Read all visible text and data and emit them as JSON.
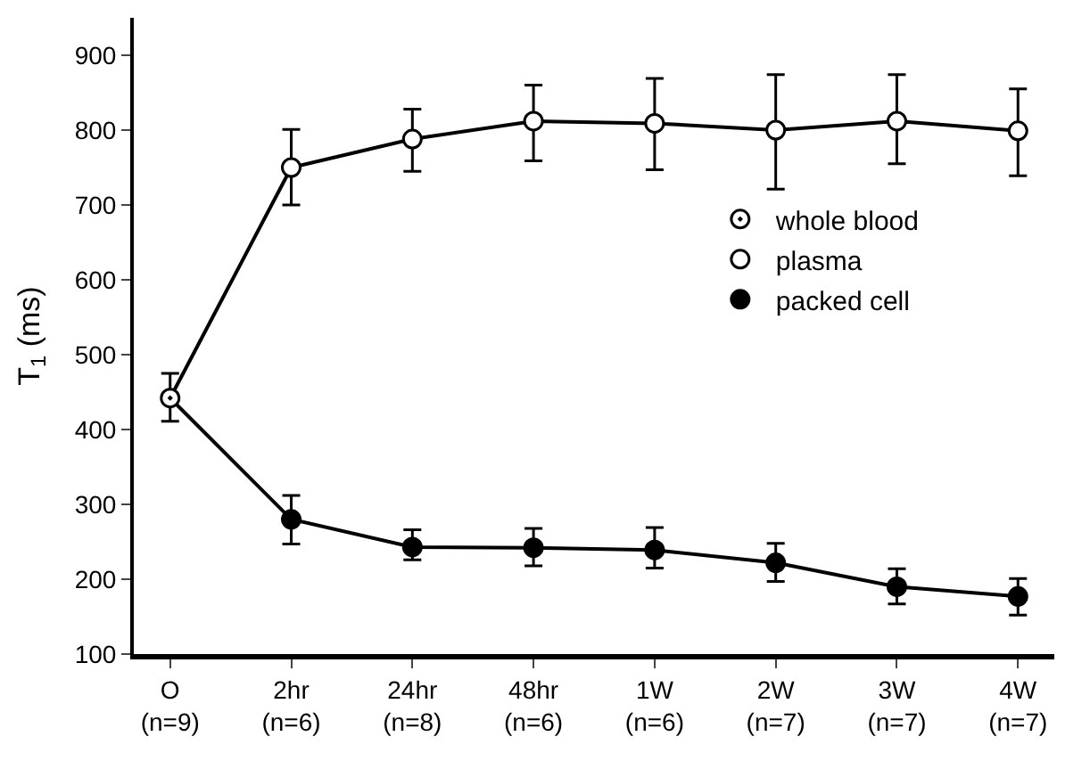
{
  "chart_data": {
    "type": "line",
    "ylabel": "T$_{1}$ (ms)",
    "categories": [
      "O\n(n=9)",
      "2hr\n(n=6)",
      "24hr\n(n=8)",
      "48hr\n(n=6)",
      "1W\n(n=6)",
      "2W\n(n=7)",
      "3W\n(n=7)",
      "4W\n(n=7)"
    ],
    "series": [
      {
        "name": "whole blood",
        "type": "scatter",
        "color": "#000000",
        "marker": "circle-dot",
        "values": [
          442,
          null,
          null,
          null,
          null,
          null,
          null,
          null
        ],
        "errors": [
          [
            411,
            475
          ],
          null,
          null,
          null,
          null,
          null,
          null,
          null
        ]
      },
      {
        "name": "plasma",
        "color": "#000000",
        "marker": "circle-open",
        "values": [
          442,
          750,
          788,
          812,
          809,
          800,
          812,
          799
        ],
        "errors": [
          null,
          [
            700,
            801
          ],
          [
            745,
            828
          ],
          [
            759,
            860
          ],
          [
            747,
            869
          ],
          [
            721,
            874
          ],
          [
            755,
            874
          ],
          [
            739,
            855
          ]
        ]
      },
      {
        "name": "packed cell",
        "color": "#000000",
        "marker": "circle",
        "values": [
          442,
          280,
          243,
          242,
          239,
          222,
          190,
          177
        ],
        "errors": [
          null,
          [
            247,
            312
          ],
          [
            226,
            266
          ],
          [
            218,
            268
          ],
          [
            215,
            269
          ],
          [
            197,
            248
          ],
          [
            167,
            214
          ],
          [
            152,
            201
          ]
        ]
      }
    ],
    "ylim": [
      100,
      950
    ],
    "yticks": [
      100,
      200,
      300,
      400,
      500,
      600,
      700,
      800,
      900
    ],
    "legend": "right",
    "line_style": "solid"
  }
}
